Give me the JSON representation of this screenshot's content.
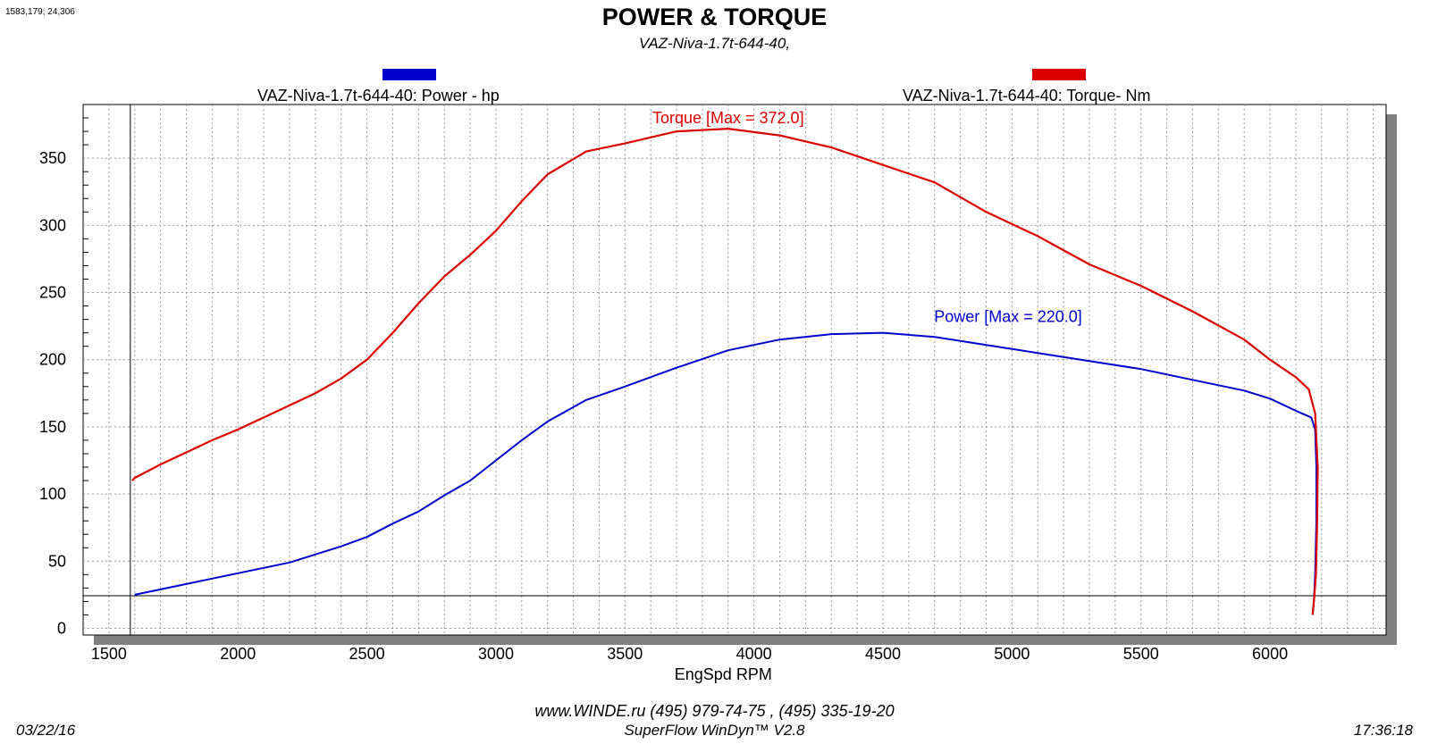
{
  "cursor_readout": "1583,179; 24,306",
  "footer": {
    "website": "www.WINDE.ru  (495) 979-74-75 , (495) 335-19-20",
    "software": "SuperFlow WinDyn™ V2.8",
    "date": "03/22/16",
    "time": "17:36:18"
  },
  "colors": {
    "power": "#0000cc",
    "torque": "#dd0000",
    "frame_shadow": "#808080",
    "grid": "#999999"
  },
  "chart_data": {
    "type": "line",
    "title": "POWER & TORQUE",
    "subtitle": "VAZ-Niva-1.7t-644-40,",
    "xlabel": "EngSpd  RPM",
    "ylabel": "",
    "xlim": [
      1400,
      6450
    ],
    "ylim": [
      -5,
      390
    ],
    "x_ticks": [
      "1500",
      "2000",
      "2500",
      "3000",
      "3500",
      "4000",
      "4500",
      "5000",
      "5500",
      "6000"
    ],
    "y_ticks": [
      "0",
      "50",
      "100",
      "150",
      "200",
      "250",
      "300",
      "350"
    ],
    "grid": true,
    "legend": [
      {
        "label": "VAZ-Niva-1.7t-644-40: Power -  hp",
        "color": "#0000cc"
      },
      {
        "label": "VAZ-Niva-1.7t-644-40: Torque-  Nm",
        "color": "#dd0000"
      }
    ],
    "cursor": {
      "x": 1583,
      "y": 24.3
    },
    "series": [
      {
        "name": "VAZ-Niva-1.7t-644-40: Power -  hp",
        "color": "#0000cc",
        "annotation": "Power  [Max = 220.0]",
        "points": [
          [
            1600,
            25
          ],
          [
            1700,
            29
          ],
          [
            1800,
            33
          ],
          [
            1900,
            37
          ],
          [
            2000,
            41
          ],
          [
            2100,
            45
          ],
          [
            2200,
            49
          ],
          [
            2300,
            55
          ],
          [
            2400,
            61
          ],
          [
            2500,
            68
          ],
          [
            2600,
            78
          ],
          [
            2700,
            87
          ],
          [
            2800,
            99
          ],
          [
            2900,
            110
          ],
          [
            3000,
            125
          ],
          [
            3100,
            140
          ],
          [
            3200,
            154
          ],
          [
            3350,
            170
          ],
          [
            3500,
            180
          ],
          [
            3700,
            194
          ],
          [
            3900,
            207
          ],
          [
            4100,
            215
          ],
          [
            4300,
            219
          ],
          [
            4500,
            220
          ],
          [
            4700,
            217
          ],
          [
            4900,
            211
          ],
          [
            5100,
            205
          ],
          [
            5300,
            199
          ],
          [
            5500,
            193
          ],
          [
            5700,
            185
          ],
          [
            5900,
            177
          ],
          [
            6000,
            171
          ],
          [
            6100,
            162
          ],
          [
            6160,
            157
          ],
          [
            6175,
            148
          ],
          [
            6180,
            120
          ],
          [
            6180,
            80
          ],
          [
            6175,
            40
          ],
          [
            6170,
            20
          ],
          [
            6165,
            10
          ]
        ]
      },
      {
        "name": "VAZ-Niva-1.7t-644-40: Torque-  Nm",
        "color": "#dd0000",
        "annotation": "Torque [Max = 372.0]",
        "points": [
          [
            1590,
            110
          ],
          [
            1600,
            112
          ],
          [
            1700,
            122
          ],
          [
            1800,
            131
          ],
          [
            1900,
            140
          ],
          [
            2000,
            148
          ],
          [
            2100,
            157
          ],
          [
            2200,
            166
          ],
          [
            2300,
            175
          ],
          [
            2400,
            186
          ],
          [
            2500,
            200
          ],
          [
            2600,
            220
          ],
          [
            2700,
            242
          ],
          [
            2800,
            262
          ],
          [
            2900,
            278
          ],
          [
            3000,
            296
          ],
          [
            3100,
            318
          ],
          [
            3200,
            338
          ],
          [
            3350,
            355
          ],
          [
            3500,
            361
          ],
          [
            3700,
            370
          ],
          [
            3900,
            372
          ],
          [
            4100,
            367
          ],
          [
            4300,
            358
          ],
          [
            4500,
            345
          ],
          [
            4700,
            332
          ],
          [
            4900,
            310
          ],
          [
            5100,
            292
          ],
          [
            5300,
            271
          ],
          [
            5500,
            255
          ],
          [
            5700,
            236
          ],
          [
            5900,
            215
          ],
          [
            6000,
            200
          ],
          [
            6100,
            187
          ],
          [
            6150,
            178
          ],
          [
            6175,
            160
          ],
          [
            6185,
            120
          ],
          [
            6183,
            80
          ],
          [
            6178,
            40
          ],
          [
            6170,
            20
          ],
          [
            6165,
            10
          ]
        ]
      }
    ]
  }
}
